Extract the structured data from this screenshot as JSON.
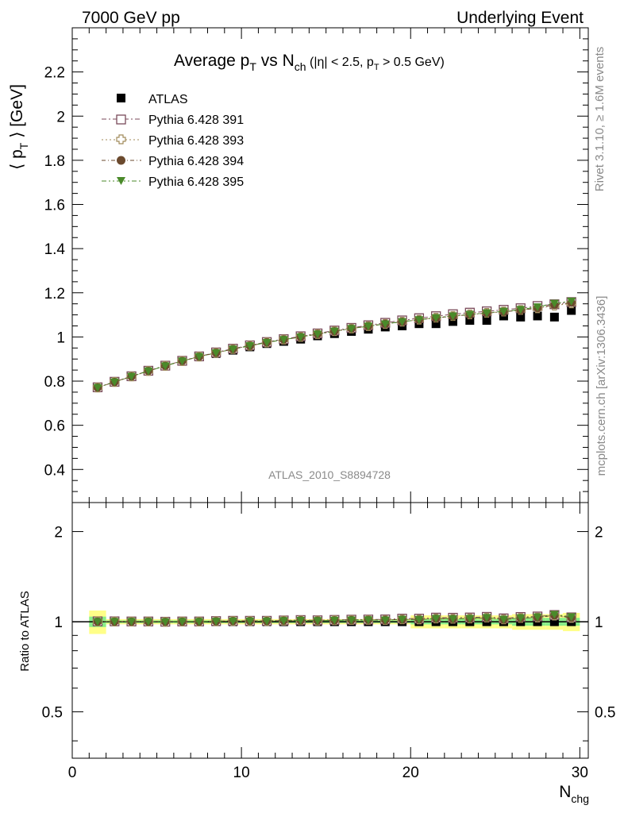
{
  "header": {
    "left": "7000 GeV pp",
    "right": "Underlying Event"
  },
  "side_labels": {
    "rivet": "Rivet 3.1.10, ≥ 1.6M events",
    "mcplots": "mcplots.cern.ch [arXiv:1306.3436]"
  },
  "chart_data": [
    {
      "type": "scatter",
      "title_parts": {
        "p1": "Average p",
        "p1_sub": "T",
        "p2": " vs N",
        "p2_sub": "ch",
        "p3": " (|η| < 2.5, p",
        "p3_sub": "T",
        "p4": " > 0.5 GeV)"
      },
      "ylabel_parts": {
        "a": "⟨ p",
        "a_sub": "T",
        "b": " ⟩ [GeV]"
      },
      "xlim": [
        0,
        30.5
      ],
      "ylim": [
        0.25,
        2.4
      ],
      "yticks": [
        0.4,
        0.6,
        0.8,
        1,
        1.2,
        1.4,
        1.6,
        1.8,
        2,
        2.2
      ],
      "ytick_labels": [
        "0.4",
        "0.6",
        "0.8",
        "1",
        "1.2",
        "1.4",
        "1.6",
        "1.8",
        "2",
        "2.2"
      ],
      "watermark": "ATLAS_2010_S8894728",
      "x": [
        1.5,
        2.5,
        3.5,
        4.5,
        5.5,
        6.5,
        7.5,
        8.5,
        9.5,
        10.5,
        11.5,
        12.5,
        13.5,
        14.5,
        15.5,
        16.5,
        17.5,
        18.5,
        19.5,
        20.5,
        21.5,
        22.5,
        23.5,
        24.5,
        25.5,
        26.5,
        27.5,
        28.5,
        29.5
      ],
      "series": [
        {
          "name": "ATLAS",
          "marker": "square-filled",
          "color": "#000000",
          "values": [
            0.77,
            0.795,
            0.82,
            0.845,
            0.87,
            0.89,
            0.91,
            0.925,
            0.94,
            0.955,
            0.97,
            0.98,
            0.99,
            1.005,
            1.015,
            1.025,
            1.035,
            1.045,
            1.05,
            1.06,
            1.06,
            1.07,
            1.075,
            1.075,
            1.095,
            1.09,
            1.095,
            1.09,
            1.12
          ]
        },
        {
          "name": "Pythia 6.428 391",
          "marker": "square-open",
          "color": "#7a4a5a",
          "values": [
            0.772,
            0.797,
            0.822,
            0.847,
            0.87,
            0.892,
            0.912,
            0.93,
            0.947,
            0.962,
            0.977,
            0.99,
            1.003,
            1.016,
            1.029,
            1.041,
            1.053,
            1.064,
            1.075,
            1.085,
            1.094,
            1.103,
            1.11,
            1.116,
            1.123,
            1.13,
            1.14,
            1.148,
            1.158
          ]
        },
        {
          "name": "Pythia 6.428 393",
          "marker": "cross-open",
          "color": "#a08a5a",
          "values": [
            0.771,
            0.796,
            0.821,
            0.846,
            0.869,
            0.891,
            0.911,
            0.928,
            0.945,
            0.96,
            0.975,
            0.988,
            1.0,
            1.013,
            1.026,
            1.038,
            1.049,
            1.059,
            1.069,
            1.078,
            1.087,
            1.095,
            1.102,
            1.109,
            1.115,
            1.122,
            1.13,
            1.142,
            1.152
          ]
        },
        {
          "name": "Pythia 6.428 394",
          "marker": "circle-filled",
          "color": "#6b4a2e",
          "values": [
            0.771,
            0.796,
            0.821,
            0.846,
            0.869,
            0.891,
            0.911,
            0.928,
            0.945,
            0.96,
            0.975,
            0.988,
            1.0,
            1.013,
            1.026,
            1.038,
            1.049,
            1.059,
            1.069,
            1.078,
            1.086,
            1.094,
            1.101,
            1.108,
            1.114,
            1.121,
            1.131,
            1.145,
            1.155
          ]
        },
        {
          "name": "Pythia 6.428 395",
          "marker": "triangle-down-filled",
          "color": "#4a8a2a",
          "values": [
            0.771,
            0.796,
            0.821,
            0.846,
            0.869,
            0.891,
            0.911,
            0.928,
            0.945,
            0.96,
            0.975,
            0.988,
            1.0,
            1.013,
            1.026,
            1.038,
            1.049,
            1.059,
            1.069,
            1.078,
            1.087,
            1.095,
            1.102,
            1.109,
            1.116,
            1.124,
            1.136,
            1.152,
            1.162
          ]
        }
      ]
    },
    {
      "type": "scatter",
      "panel": "ratio",
      "ylabel": "Ratio to ATLAS",
      "xlabel_parts": {
        "a": "N",
        "a_sub": "chg"
      },
      "xlim": [
        0,
        30.5
      ],
      "ylim": [
        0.35,
        2.5
      ],
      "log_y": true,
      "xticks": [
        0,
        10,
        20,
        30
      ],
      "xtick_labels": [
        "0",
        "10",
        "20",
        "30"
      ],
      "yticks": [
        0.5,
        1,
        2
      ],
      "ytick_labels": [
        "0.5",
        "1",
        "2"
      ],
      "band_colors": {
        "outer": "#ffff88",
        "inner": "#88ee88",
        "line": "#000000"
      },
      "band_outer_halfwidth": [
        0.09,
        0.02,
        0.02,
        0.02,
        0.02,
        0.02,
        0.02,
        0.02,
        0.02,
        0.02,
        0.02,
        0.02,
        0.02,
        0.02,
        0.02,
        0.02,
        0.02,
        0.02,
        0.02,
        0.05,
        0.05,
        0.05,
        0.05,
        0.05,
        0.05,
        0.06,
        0.06,
        0.06,
        0.07
      ],
      "band_inner_halfwidth": [
        0.04,
        0.01,
        0.01,
        0.01,
        0.01,
        0.01,
        0.01,
        0.01,
        0.01,
        0.01,
        0.01,
        0.01,
        0.01,
        0.01,
        0.01,
        0.01,
        0.01,
        0.01,
        0.01,
        0.02,
        0.02,
        0.02,
        0.02,
        0.02,
        0.02,
        0.03,
        0.03,
        0.03,
        0.03
      ],
      "series": [
        {
          "name": "Pythia 6.428 391",
          "values": [
            1.003,
            1.003,
            1.002,
            1.002,
            1.0,
            1.002,
            1.002,
            1.005,
            1.007,
            1.007,
            1.007,
            1.01,
            1.013,
            1.011,
            1.014,
            1.016,
            1.017,
            1.018,
            1.024,
            1.024,
            1.032,
            1.031,
            1.033,
            1.038,
            1.026,
            1.037,
            1.041,
            1.053,
            1.034
          ]
        },
        {
          "name": "Pythia 6.428 393",
          "values": [
            1.001,
            1.001,
            1.001,
            1.001,
            0.999,
            1.001,
            1.001,
            1.003,
            1.005,
            1.005,
            1.005,
            1.008,
            1.01,
            1.008,
            1.011,
            1.013,
            1.014,
            1.013,
            1.018,
            1.017,
            1.025,
            1.023,
            1.025,
            1.032,
            1.018,
            1.029,
            1.032,
            1.048,
            1.029
          ]
        },
        {
          "name": "Pythia 6.428 394",
          "values": [
            1.001,
            1.001,
            1.001,
            1.001,
            0.999,
            1.001,
            1.001,
            1.003,
            1.005,
            1.005,
            1.005,
            1.008,
            1.01,
            1.008,
            1.011,
            1.013,
            1.014,
            1.013,
            1.018,
            1.017,
            1.025,
            1.022,
            1.024,
            1.03,
            1.017,
            1.028,
            1.033,
            1.05,
            1.031
          ]
        },
        {
          "name": "Pythia 6.428 395",
          "values": [
            1.001,
            1.001,
            1.001,
            1.001,
            0.999,
            1.001,
            1.001,
            1.003,
            1.005,
            1.005,
            1.005,
            1.008,
            1.01,
            1.008,
            1.011,
            1.013,
            1.014,
            1.013,
            1.018,
            1.017,
            1.025,
            1.023,
            1.025,
            1.032,
            1.019,
            1.031,
            1.037,
            1.057,
            1.038
          ]
        }
      ]
    }
  ]
}
